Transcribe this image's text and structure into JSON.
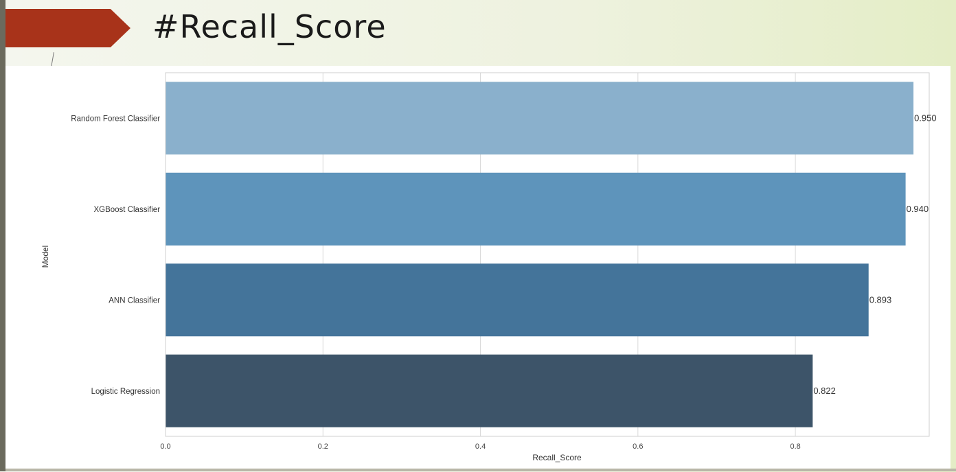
{
  "slide": {
    "title": "#Recall_Score"
  },
  "chart_data": {
    "type": "bar",
    "orientation": "horizontal",
    "categories": [
      "Random Forest Classifier",
      "XGBoost Classifier",
      "ANN Classifier",
      "Logistic Regression"
    ],
    "values": [
      0.95,
      0.94,
      0.893,
      0.822
    ],
    "value_labels": [
      "0.950",
      "0.940",
      "0.893",
      "0.822"
    ],
    "colors": [
      "#8ab0cc",
      "#5e94bb",
      "#44749a",
      "#3d5469"
    ],
    "xlabel": "Recall_Score",
    "ylabel": "Model",
    "xlim": [
      0,
      0.97
    ],
    "xticks": [
      0.0,
      0.2,
      0.4,
      0.6,
      0.8
    ],
    "xtick_labels": [
      "0.0",
      "0.2",
      "0.4",
      "0.6",
      "0.8"
    ],
    "grid": true
  }
}
